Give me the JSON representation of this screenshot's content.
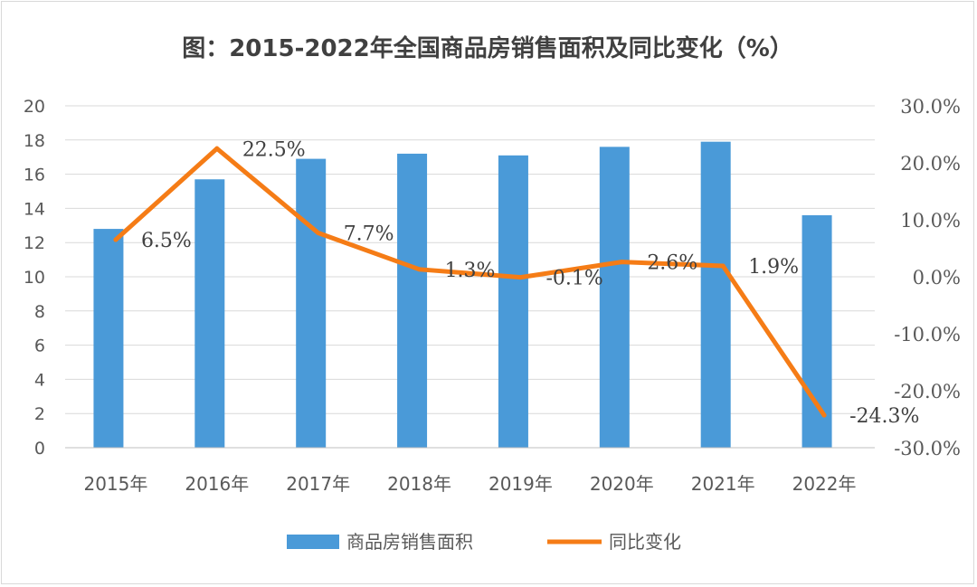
{
  "chart_data": {
    "type": "bar",
    "title": "图：2015-2022年全国商品房销售面积及同比变化（%）",
    "categories": [
      "2015年",
      "2016年",
      "2017年",
      "2018年",
      "2019年",
      "2020年",
      "2021年",
      "2022年"
    ],
    "series": [
      {
        "name": "商品房销售面积",
        "type": "bar",
        "axis": "left",
        "color": "#4a9ad8",
        "values": [
          12.8,
          15.7,
          16.9,
          17.2,
          17.1,
          17.6,
          17.9,
          13.6
        ]
      },
      {
        "name": "同比变化",
        "type": "line",
        "axis": "right",
        "color": "#f57c16",
        "values": [
          6.5,
          22.5,
          7.7,
          1.3,
          -0.1,
          2.6,
          1.9,
          -24.3
        ],
        "labels": [
          "6.5%",
          "22.5%",
          "7.7%",
          "1.3%",
          "-0.1%",
          "2.6%",
          "1.9%",
          "-24.3%"
        ]
      }
    ],
    "y_left": {
      "range": [
        0,
        20
      ],
      "ticks": [
        "0",
        "2",
        "4",
        "6",
        "8",
        "10",
        "12",
        "14",
        "16",
        "18",
        "20"
      ]
    },
    "y_right": {
      "range": [
        -30,
        30
      ],
      "ticks": [
        "-30.0%",
        "-20.0%",
        "-10.0%",
        "0.0%",
        "10.0%",
        "20.0%",
        "30.0%"
      ]
    },
    "grid": true,
    "legend": "bottom"
  }
}
